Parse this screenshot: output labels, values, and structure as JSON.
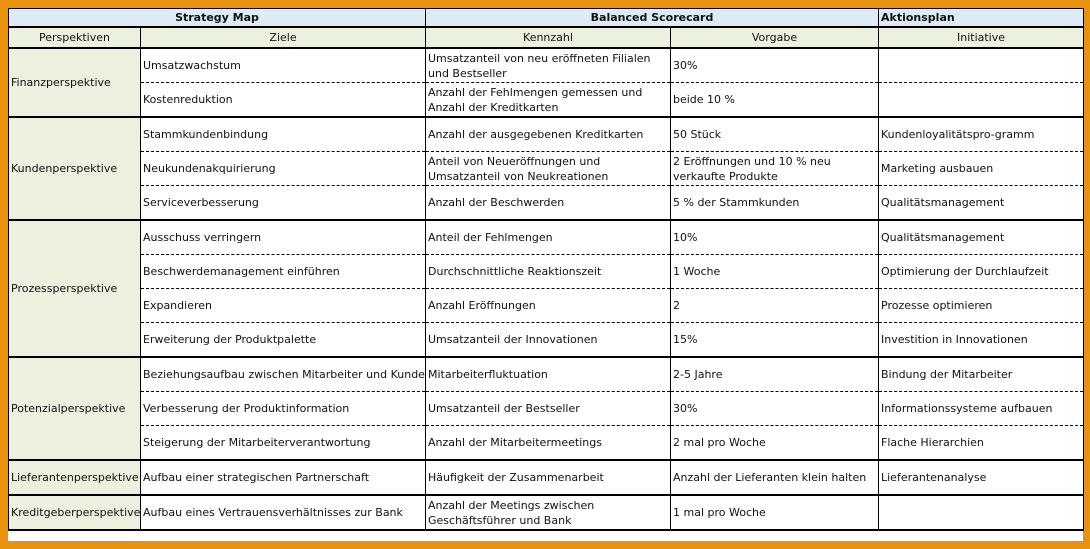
{
  "header": {
    "strategy_map": "Strategy Map",
    "balanced_scorecard": "Balanced Scorecard",
    "aktionsplan": "Aktionsplan"
  },
  "columns": {
    "perspektiven": "Perspektiven",
    "ziele": "Ziele",
    "kennzahl": "Kennzahl",
    "vorgabe": "Vorgabe",
    "initiative": "Initiative"
  },
  "groups": [
    {
      "perspektive": "Finanzperspektive",
      "rows": [
        {
          "ziel": "Umsatzwachstum",
          "kennzahl": "Umsatzanteil von neu eröffneten Filialen und Bestseller",
          "vorgabe": "30%",
          "initiative": ""
        },
        {
          "ziel": "Kostenreduktion",
          "kennzahl": "Anzahl der Fehlmengen gemessen und Anzahl der Kreditkarten",
          "vorgabe": "beide 10 %",
          "initiative": ""
        }
      ]
    },
    {
      "perspektive": "Kundenperspektive",
      "rows": [
        {
          "ziel": "Stammkundenbindung",
          "kennzahl": "Anzahl der ausgegebenen Kreditkarten",
          "vorgabe": "50 Stück",
          "initiative": "Kundenloyalitätspro-gramm"
        },
        {
          "ziel": "Neukundenakquirierung",
          "kennzahl": "Anteil von Neueröffnungen und Umsatzanteil von Neukreationen",
          "vorgabe": "2 Eröffnungen und 10 % neu verkaufte Produkte",
          "initiative": "Marketing ausbauen"
        },
        {
          "ziel": "Serviceverbesserung",
          "kennzahl": "Anzahl der Beschwerden",
          "vorgabe": "5 % der Stammkunden",
          "initiative": "Qualitätsmanagement"
        }
      ]
    },
    {
      "perspektive": "Prozessperspektive",
      "rows": [
        {
          "ziel": "Ausschuss verringern",
          "kennzahl": "Anteil der Fehlmengen",
          "vorgabe": "10%",
          "initiative": "Qualitätsmanagement"
        },
        {
          "ziel": "Beschwerdemanagement einführen",
          "kennzahl": "Durchschnittliche  Reaktionszeit",
          "vorgabe": "1 Woche",
          "initiative": "Optimierung der Durchlaufzeit"
        },
        {
          "ziel": "Expandieren",
          "kennzahl": "Anzahl Eröffnungen",
          "vorgabe": "2",
          "initiative": "Prozesse optimieren"
        },
        {
          "ziel": "Erweiterung der Produktpalette",
          "kennzahl": "Umsatzanteil der Innovationen",
          "vorgabe": "15%",
          "initiative": "Investition in Innovationen"
        }
      ]
    },
    {
      "perspektive": "Potenzialperspektive",
      "rows": [
        {
          "ziel": "Beziehungsaufbau zwischen Mitarbeiter und Kunde",
          "kennzahl": "Mitarbeiterfluktuation",
          "vorgabe": "2-5 Jahre",
          "initiative": "Bindung der Mitarbeiter"
        },
        {
          "ziel": "Verbesserung der Produktinformation",
          "kennzahl": "Umsatzanteil der  Bestseller",
          "vorgabe": "30%",
          "initiative": "Informationssysteme aufbauen"
        },
        {
          "ziel": "Steigerung der Mitarbeiterverantwortung",
          "kennzahl": "Anzahl der Mitarbeitermeetings",
          "vorgabe": "2 mal pro Woche",
          "initiative": "Flache Hierarchien"
        }
      ]
    },
    {
      "perspektive": "Lieferantenperspektive",
      "rows": [
        {
          "ziel": "Aufbau einer strategischen Partnerschaft",
          "kennzahl": "Häufigkeit der Zusammenarbeit",
          "vorgabe": "Anzahl der Lieferanten klein halten",
          "initiative": "Lieferantenanalyse"
        }
      ]
    },
    {
      "perspektive": "Kreditgeberperspektive",
      "rows": [
        {
          "ziel": "Aufbau eines Vertrauensverhältnisses zur Bank",
          "kennzahl": "Anzahl der Meetings zwischen Geschäftsführer und Bank",
          "vorgabe": "1 mal  pro Woche",
          "initiative": ""
        }
      ]
    }
  ]
}
